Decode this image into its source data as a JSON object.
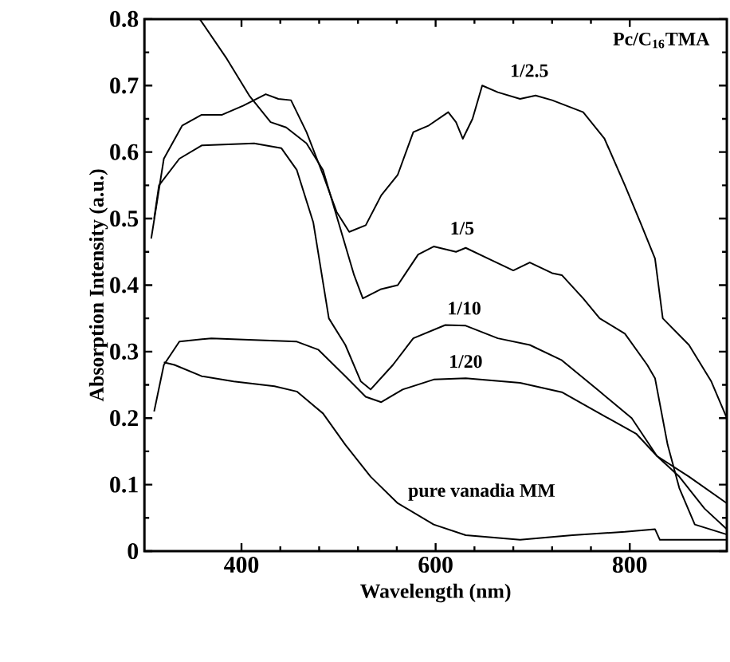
{
  "chart_data": {
    "type": "line",
    "xlabel": "Wavelength (nm)",
    "ylabel": "Absorption Intensity (a.u.)",
    "xlim": [
      300,
      900
    ],
    "xticks": [
      400,
      600,
      800
    ],
    "ylim": [
      0,
      0.8
    ],
    "yticks": [
      0,
      0.1,
      0.2,
      0.3,
      0.4,
      0.5,
      0.6,
      0.7,
      0.8
    ],
    "grid": false,
    "marker": "none",
    "line_style": "solid",
    "annotations": [
      "Pc/C$_{16}$TMA"
    ],
    "series": [
      {
        "name": "1/2.5",
        "color": "#000000",
        "x": [
          307,
          320,
          339,
          359,
          380,
          402,
          425,
          438,
          451,
          467,
          484,
          498,
          511,
          528,
          544,
          561,
          577,
          593,
          613,
          621,
          628,
          638,
          648,
          664,
          687,
          703,
          720,
          752,
          774,
          795,
          811,
          826,
          834,
          861,
          884,
          900
        ],
        "values": [
          0.47,
          0.59,
          0.64,
          0.656,
          0.656,
          0.67,
          0.687,
          0.68,
          0.678,
          0.63,
          0.566,
          0.51,
          0.48,
          0.49,
          0.535,
          0.566,
          0.63,
          0.64,
          0.66,
          0.645,
          0.62,
          0.65,
          0.7,
          0.69,
          0.68,
          0.685,
          0.678,
          0.66,
          0.62,
          0.55,
          0.494,
          0.44,
          0.35,
          0.31,
          0.255,
          0.2
        ]
      },
      {
        "name": "1/5",
        "color": "#000000",
        "x": [
          357,
          385,
          408,
          430,
          446,
          467,
          484,
          500,
          516,
          525,
          544,
          561,
          582,
          598,
          621,
          631,
          654,
          680,
          697,
          720,
          730,
          752,
          769,
          795,
          818,
          826,
          839,
          851,
          867,
          900
        ],
        "values": [
          0.8,
          0.74,
          0.685,
          0.645,
          0.637,
          0.613,
          0.573,
          0.494,
          0.415,
          0.38,
          0.394,
          0.4,
          0.446,
          0.458,
          0.45,
          0.456,
          0.44,
          0.422,
          0.434,
          0.418,
          0.415,
          0.38,
          0.35,
          0.327,
          0.28,
          0.26,
          0.16,
          0.095,
          0.04,
          0.025
        ]
      },
      {
        "name": "1/10",
        "color": "#000000",
        "x": [
          310,
          315,
          336,
          359,
          413,
          441,
          457,
          474,
          490,
          507,
          523,
          533,
          556,
          577,
          610,
          631,
          664,
          697,
          730,
          769,
          802,
          828,
          861,
          900
        ],
        "values": [
          0.5,
          0.55,
          0.59,
          0.61,
          0.613,
          0.606,
          0.573,
          0.494,
          0.35,
          0.31,
          0.255,
          0.243,
          0.28,
          0.32,
          0.34,
          0.339,
          0.32,
          0.31,
          0.287,
          0.24,
          0.2,
          0.143,
          0.112,
          0.072
        ]
      },
      {
        "name": "1/20",
        "color": "#000000",
        "x": [
          310,
          320,
          336,
          369,
          457,
          479,
          507,
          528,
          544,
          566,
          598,
          631,
          687,
          730,
          769,
          807,
          828,
          851,
          877,
          900
        ],
        "values": [
          0.21,
          0.28,
          0.315,
          0.32,
          0.315,
          0.303,
          0.263,
          0.232,
          0.224,
          0.243,
          0.258,
          0.26,
          0.253,
          0.239,
          0.207,
          0.176,
          0.143,
          0.112,
          0.064,
          0.033
        ]
      },
      {
        "name": "pure vanadia MM",
        "color": "#000000",
        "x": [
          320,
          331,
          359,
          392,
          434,
          457,
          484,
          507,
          533,
          561,
          598,
          631,
          687,
          741,
          795,
          826,
          831,
          900
        ],
        "values": [
          0.284,
          0.28,
          0.263,
          0.255,
          0.248,
          0.24,
          0.207,
          0.16,
          0.112,
          0.072,
          0.04,
          0.024,
          0.017,
          0.024,
          0.029,
          0.033,
          0.017,
          0.017
        ]
      }
    ]
  }
}
